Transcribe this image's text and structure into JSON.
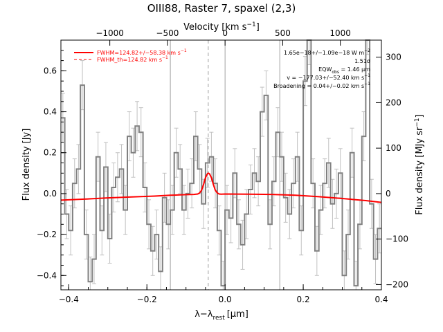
{
  "chart_data": {
    "type": "line",
    "title": "OIII88, Raster 7, spaxel (2,3)",
    "xlabel": "λ−λ",
    "xlabel_sub": "rest",
    "xlabel_unit": "[μm]",
    "ylabel": "Flux density [Jy]",
    "ylabel_right": "Flux density [MJy sr",
    "ylabel_right_sup": "−1",
    "ylabel_right_end": "]",
    "top_axis_label": "Velocity [km s",
    "top_axis_sup": "−1",
    "top_axis_end": "]",
    "xlim": [
      -0.42,
      0.4
    ],
    "ylim": [
      -0.47,
      0.75
    ],
    "right_axis_scale": 450,
    "x_ticks": [
      -0.4,
      -0.2,
      0.0,
      0.2,
      0.4
    ],
    "x_tick_labels": [
      "−0.4",
      "−0.2",
      "0.0",
      "0.2",
      "0.4"
    ],
    "y_ticks": [
      -0.4,
      -0.2,
      0.0,
      0.2,
      0.4,
      0.6
    ],
    "y_tick_labels": [
      "−0.4",
      "−0.2",
      "0.0",
      "0.2",
      "0.4",
      "0.6"
    ],
    "right_ticks": [
      -200,
      -100,
      0,
      100,
      200,
      300
    ],
    "right_tick_labels": [
      "−200",
      "−100",
      "0",
      "100",
      "200",
      "300"
    ],
    "top_ticks": [
      -1000,
      -500,
      0,
      500,
      1000
    ],
    "top_tick_labels": [
      "−1000",
      "−500",
      "0",
      "500",
      "1000"
    ],
    "velocity_per_micron": 3391,
    "vertical_lines": [
      -0.14,
      0.0,
      0.14
    ],
    "dashed_line_x": -0.043,
    "legend": [
      {
        "label": "FWHM=124.82+/−58.38 km s",
        "sup": "−1",
        "style": "solid",
        "color": "#ff0000"
      },
      {
        "label": "FWHM_th=124.82 km s",
        "sup": "−1",
        "style": "dashed",
        "color": "#ff0000"
      }
    ],
    "annotations": [
      {
        "text": "1.65e−18+/−1.09e−18 W m",
        "sup": "−2"
      },
      {
        "text": "1.51σ"
      },
      {
        "text": "EQW",
        "sub": "obs",
        "tail": " = 1.46 μm"
      },
      {
        "text": "v = −177.03+/−52.40 km s",
        "sup": "−1"
      },
      {
        "text": "Broadening = 0.04+/−0.02 km s",
        "sup": "−1"
      }
    ],
    "series": [
      {
        "name": "data",
        "style": "histogram",
        "color": "#808080",
        "x": [
          -0.415,
          -0.405,
          -0.395,
          -0.385,
          -0.375,
          -0.365,
          -0.355,
          -0.345,
          -0.335,
          -0.325,
          -0.315,
          -0.305,
          -0.295,
          -0.285,
          -0.275,
          -0.265,
          -0.255,
          -0.245,
          -0.235,
          -0.225,
          -0.215,
          -0.205,
          -0.195,
          -0.185,
          -0.175,
          -0.165,
          -0.155,
          -0.145,
          -0.135,
          -0.125,
          -0.115,
          -0.105,
          -0.095,
          -0.085,
          -0.075,
          -0.065,
          -0.055,
          -0.045,
          -0.035,
          -0.025,
          -0.015,
          -0.005,
          0.005,
          0.015,
          0.025,
          0.035,
          0.045,
          0.055,
          0.065,
          0.075,
          0.085,
          0.095,
          0.105,
          0.115,
          0.125,
          0.135,
          0.145,
          0.155,
          0.165,
          0.175,
          0.185,
          0.195,
          0.205,
          0.215,
          0.225,
          0.235,
          0.245,
          0.255,
          0.265,
          0.275,
          0.285,
          0.295,
          0.305,
          0.315,
          0.325,
          0.335,
          0.345,
          0.355,
          0.365,
          0.375,
          0.385,
          0.395
        ],
        "values": [
          0.37,
          -0.1,
          -0.18,
          0.05,
          0.12,
          0.53,
          -0.2,
          -0.43,
          -0.32,
          0.18,
          -0.18,
          0.13,
          -0.22,
          0.03,
          0.08,
          0.12,
          -0.08,
          0.28,
          0.2,
          0.33,
          0.3,
          0.03,
          -0.15,
          -0.28,
          -0.2,
          -0.38,
          -0.02,
          -0.15,
          -0.08,
          0.2,
          0.12,
          -0.08,
          0.0,
          0.05,
          0.28,
          0.12,
          -0.05,
          0.15,
          0.18,
          0.05,
          -0.18,
          -0.45,
          -0.08,
          -0.12,
          0.1,
          -0.15,
          -0.25,
          -0.1,
          0.02,
          0.1,
          0.06,
          0.4,
          0.48,
          -0.15,
          0.06,
          0.3,
          0.18,
          -0.02,
          -0.1,
          0.05,
          0.18,
          -0.18,
          0.55,
          0.75,
          0.05,
          -0.28,
          -0.08,
          0.05,
          0.15,
          -0.05,
          0.0,
          0.1,
          -0.4,
          -0.2,
          0.2,
          -0.45,
          -0.15,
          0.28,
          0.8,
          -0.05,
          -0.32,
          -0.17
        ],
        "error": 0.12
      },
      {
        "name": "FWHM=124.82+/−58.38 km s−1",
        "style": "line",
        "color": "#ff0000",
        "x": [
          -0.42,
          -0.36,
          -0.3,
          -0.24,
          -0.18,
          -0.14,
          -0.1,
          -0.08,
          -0.07,
          -0.065,
          -0.06,
          -0.055,
          -0.05,
          -0.045,
          -0.043,
          -0.04,
          -0.035,
          -0.03,
          -0.025,
          -0.02,
          -0.015,
          -0.01,
          0.0,
          0.06,
          0.12,
          0.18,
          0.24,
          0.3,
          0.36,
          0.4
        ],
        "values": [
          -0.032,
          -0.027,
          -0.021,
          -0.016,
          -0.012,
          -0.008,
          -0.005,
          -0.004,
          -0.002,
          0.003,
          0.017,
          0.045,
          0.078,
          0.097,
          0.1,
          0.097,
          0.078,
          0.045,
          0.017,
          0.003,
          -0.002,
          -0.003,
          -0.002,
          -0.003,
          -0.004,
          -0.008,
          -0.015,
          -0.024,
          -0.034,
          -0.043
        ]
      }
    ]
  }
}
